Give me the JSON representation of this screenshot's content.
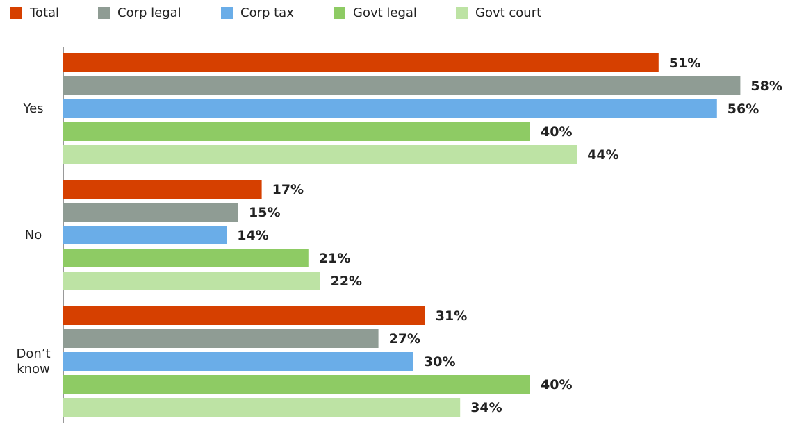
{
  "chart_data": {
    "type": "bar",
    "orientation": "horizontal",
    "categories": [
      "Yes",
      "No",
      "Don’t know"
    ],
    "series": [
      {
        "name": "Total",
        "color": "#d64000",
        "values": [
          51,
          17,
          31
        ],
        "value_labels": [
          "51%",
          "17%",
          "31%"
        ]
      },
      {
        "name": "Corp legal",
        "color": "#8f9c94",
        "values": [
          58,
          15,
          27
        ],
        "value_labels": [
          "58%",
          "15%",
          "27%"
        ]
      },
      {
        "name": "Corp tax",
        "color": "#6aade8",
        "values": [
          56,
          14,
          30
        ],
        "value_labels": [
          "56%",
          "14%",
          "30%"
        ]
      },
      {
        "name": "Govt legal",
        "color": "#8ecb64",
        "values": [
          40,
          21,
          40
        ],
        "value_labels": [
          "40%",
          "21%",
          "40%"
        ]
      },
      {
        "name": "Govt court",
        "color": "#bde3a4",
        "values": [
          44,
          22,
          34
        ],
        "value_labels": [
          "44%",
          "22%",
          "34%"
        ]
      }
    ]
  }
}
